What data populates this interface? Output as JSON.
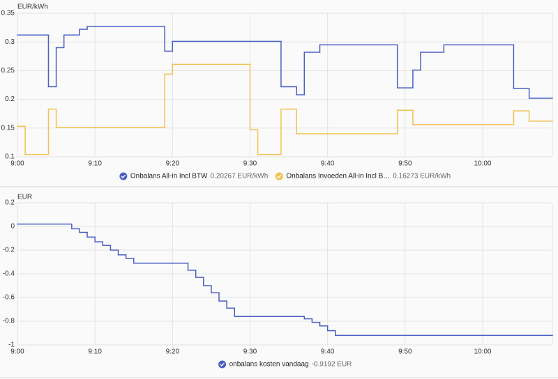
{
  "chart_data": [
    {
      "type": "line",
      "step": true,
      "y_label": "EUR/kWh",
      "xlim": [
        "9:00",
        "10:09"
      ],
      "xticks": [
        "9:00",
        "9:10",
        "9:20",
        "9:30",
        "9:40",
        "9:50",
        "10:00"
      ],
      "ylim": [
        0.1,
        0.35
      ],
      "yticks": [
        0.1,
        0.15,
        0.2,
        0.25,
        0.3,
        0.35
      ],
      "grid": true,
      "series": [
        {
          "name": "Onbalans All-in Incl BTW",
          "state": "0.20267 EUR/kWh",
          "color": "#4a5fc1",
          "x": [
            "9:00",
            "9:04",
            "9:05",
            "9:06",
            "9:08",
            "9:09",
            "9:19",
            "9:20",
            "9:34",
            "9:36",
            "9:37",
            "9:39",
            "9:49",
            "9:51",
            "9:52",
            "9:55",
            "10:04",
            "10:06"
          ],
          "values": [
            0.312,
            0.222,
            0.29,
            0.312,
            0.322,
            0.327,
            0.284,
            0.301,
            0.222,
            0.208,
            0.282,
            0.295,
            0.22,
            0.251,
            0.282,
            0.295,
            0.219,
            0.202
          ]
        },
        {
          "name": "Onbalans Invoeden All-in Incl B…",
          "state": "0.16273 EUR/kWh",
          "color": "#f2c14e",
          "x": [
            "9:00",
            "9:01",
            "9:04",
            "9:05",
            "9:19",
            "9:20",
            "9:30",
            "9:31",
            "9:34",
            "9:36",
            "9:49",
            "9:51",
            "10:04",
            "10:06"
          ],
          "values": [
            0.153,
            0.104,
            0.183,
            0.151,
            0.244,
            0.261,
            0.147,
            0.104,
            0.183,
            0.14,
            0.181,
            0.156,
            0.18,
            0.162
          ]
        }
      ]
    },
    {
      "type": "line",
      "step": true,
      "y_label": "EUR",
      "xlim": [
        "9:00",
        "10:09"
      ],
      "xticks": [
        "9:00",
        "9:10",
        "9:20",
        "9:30",
        "9:40",
        "9:50",
        "10:00"
      ],
      "ylim": [
        -1,
        0.2
      ],
      "yticks": [
        -1,
        -0.8,
        -0.6,
        -0.4,
        -0.2,
        0,
        0.2
      ],
      "grid": true,
      "series": [
        {
          "name": "onbalans kosten vandaag",
          "state": "-0.9192 EUR",
          "color": "#4a5fc1",
          "x": [
            "9:00",
            "9:07",
            "9:08",
            "9:09",
            "9:10",
            "9:11",
            "9:12",
            "9:13",
            "9:14",
            "9:15",
            "9:22",
            "9:23",
            "9:24",
            "9:25",
            "9:26",
            "9:27",
            "9:28",
            "9:37",
            "9:38",
            "9:39",
            "9:40",
            "9:41"
          ],
          "values": [
            0.02,
            -0.02,
            -0.05,
            -0.09,
            -0.13,
            -0.16,
            -0.2,
            -0.24,
            -0.27,
            -0.31,
            -0.37,
            -0.43,
            -0.5,
            -0.56,
            -0.63,
            -0.69,
            -0.76,
            -0.78,
            -0.81,
            -0.84,
            -0.88,
            -0.92
          ]
        }
      ]
    }
  ]
}
